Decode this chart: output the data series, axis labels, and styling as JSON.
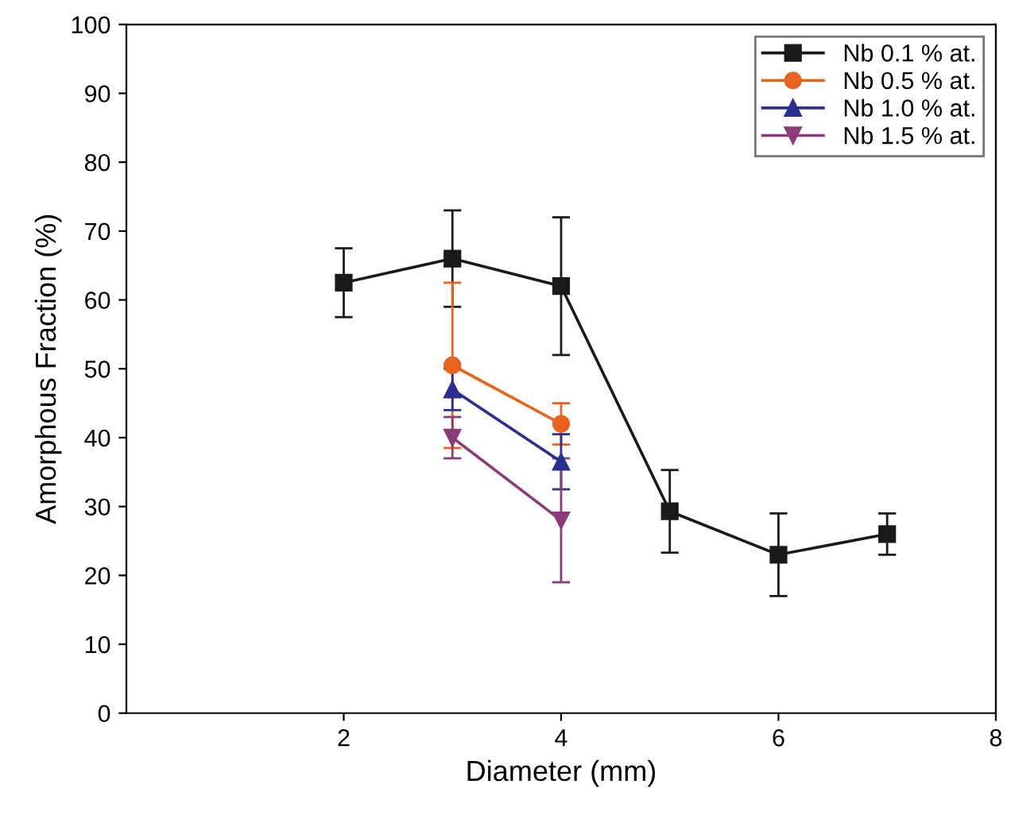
{
  "chart_data": {
    "type": "line",
    "xlabel": "Diameter (mm)",
    "ylabel": "Amorphous Fraction (%)",
    "xlim": [
      0,
      8
    ],
    "xticks": [
      2,
      4,
      6,
      8
    ],
    "ylim": [
      0,
      100
    ],
    "yticks": [
      0,
      10,
      20,
      30,
      40,
      50,
      60,
      70,
      80,
      90,
      100
    ],
    "grid": false,
    "legend": "top right",
    "series": [
      {
        "name": "Nb 0.1 % at.",
        "color": "#1a1a1a",
        "marker": "square",
        "x": [
          2,
          3,
          4,
          5,
          6,
          7
        ],
        "values": [
          62.5,
          66,
          62,
          29.3,
          23,
          26
        ],
        "errors": [
          5,
          7,
          10,
          6,
          6,
          3
        ]
      },
      {
        "name": "Nb 0.5 % at.",
        "color": "#e8641e",
        "marker": "circle",
        "x": [
          3,
          4
        ],
        "values": [
          50.5,
          42
        ],
        "errors": [
          12,
          3
        ]
      },
      {
        "name": "Nb 1.0 % at.",
        "color": "#2b2f8f",
        "marker": "triangle",
        "x": [
          3,
          4
        ],
        "values": [
          47,
          36.5
        ],
        "errors": [
          3,
          4
        ]
      },
      {
        "name": "Nb 1.5 % at.",
        "color": "#8b3a7a",
        "marker": "triangle_down",
        "x": [
          3,
          4
        ],
        "values": [
          40,
          28
        ],
        "errors": [
          3,
          9
        ]
      }
    ]
  }
}
